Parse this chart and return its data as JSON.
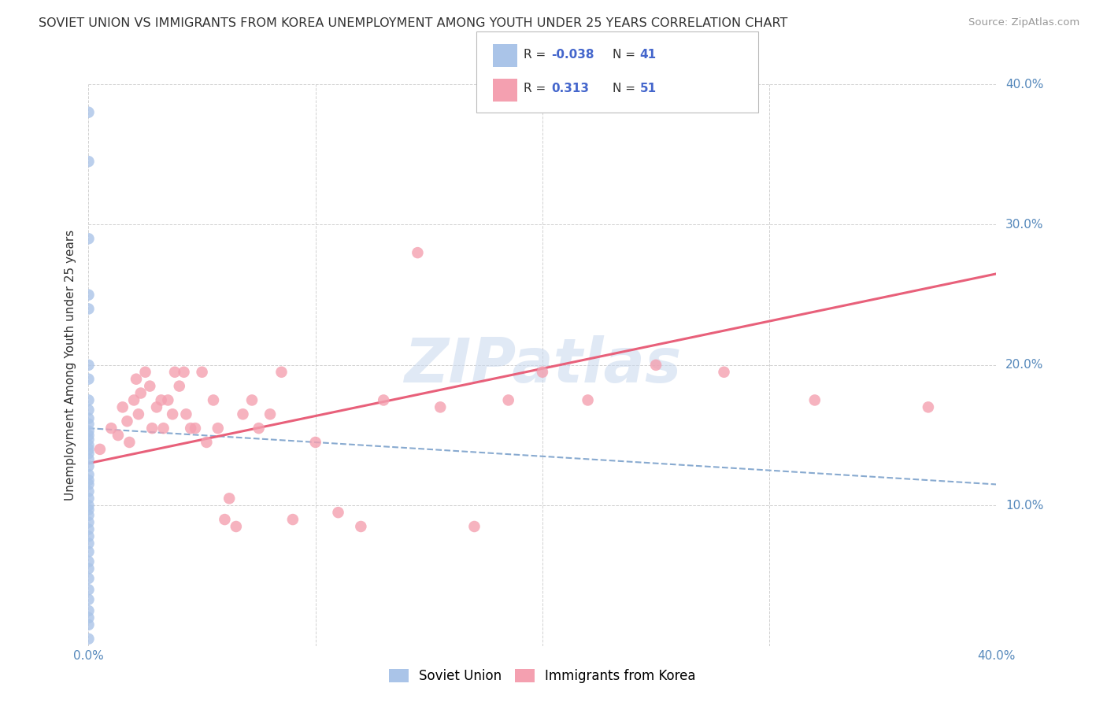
{
  "title": "SOVIET UNION VS IMMIGRANTS FROM KOREA UNEMPLOYMENT AMONG YOUTH UNDER 25 YEARS CORRELATION CHART",
  "source": "Source: ZipAtlas.com",
  "ylabel": "Unemployment Among Youth under 25 years",
  "xlim": [
    0.0,
    0.4
  ],
  "ylim": [
    0.0,
    0.4
  ],
  "background_color": "#ffffff",
  "grid_color": "#cccccc",
  "watermark_text": "ZIPatlas",
  "soviet_R": "-0.038",
  "soviet_N": "41",
  "korea_R": "0.313",
  "korea_N": "51",
  "soviet_color": "#aac4e8",
  "korea_color": "#f4a0b0",
  "soviet_line_color": "#88aad0",
  "korea_line_color": "#e8607a",
  "soviet_x": [
    0.0,
    0.0,
    0.0,
    0.0,
    0.0,
    0.0,
    0.0,
    0.0,
    0.0,
    0.0,
    0.0,
    0.0,
    0.0,
    0.0,
    0.0,
    0.0,
    0.0,
    0.0,
    0.0,
    0.0,
    0.0,
    0.0,
    0.0,
    0.0,
    0.0,
    0.0,
    0.0,
    0.0,
    0.0,
    0.0,
    0.0,
    0.0,
    0.0,
    0.0,
    0.0,
    0.0,
    0.0,
    0.0,
    0.0,
    0.0,
    0.0
  ],
  "soviet_y": [
    0.38,
    0.345,
    0.29,
    0.25,
    0.24,
    0.2,
    0.19,
    0.175,
    0.168,
    0.162,
    0.158,
    0.153,
    0.15,
    0.147,
    0.143,
    0.14,
    0.137,
    0.133,
    0.128,
    0.122,
    0.118,
    0.115,
    0.11,
    0.105,
    0.1,
    0.097,
    0.093,
    0.088,
    0.083,
    0.078,
    0.073,
    0.067,
    0.06,
    0.055,
    0.048,
    0.04,
    0.033,
    0.025,
    0.02,
    0.015,
    0.005
  ],
  "korea_x": [
    0.005,
    0.01,
    0.013,
    0.015,
    0.017,
    0.018,
    0.02,
    0.021,
    0.022,
    0.023,
    0.025,
    0.027,
    0.028,
    0.03,
    0.032,
    0.033,
    0.035,
    0.037,
    0.038,
    0.04,
    0.042,
    0.043,
    0.045,
    0.047,
    0.05,
    0.052,
    0.055,
    0.057,
    0.06,
    0.062,
    0.065,
    0.068,
    0.072,
    0.075,
    0.08,
    0.085,
    0.09,
    0.1,
    0.11,
    0.12,
    0.13,
    0.145,
    0.155,
    0.17,
    0.185,
    0.2,
    0.22,
    0.25,
    0.28,
    0.32,
    0.37
  ],
  "korea_y": [
    0.14,
    0.155,
    0.15,
    0.17,
    0.16,
    0.145,
    0.175,
    0.19,
    0.165,
    0.18,
    0.195,
    0.185,
    0.155,
    0.17,
    0.175,
    0.155,
    0.175,
    0.165,
    0.195,
    0.185,
    0.195,
    0.165,
    0.155,
    0.155,
    0.195,
    0.145,
    0.175,
    0.155,
    0.09,
    0.105,
    0.085,
    0.165,
    0.175,
    0.155,
    0.165,
    0.195,
    0.09,
    0.145,
    0.095,
    0.085,
    0.175,
    0.28,
    0.17,
    0.085,
    0.175,
    0.195,
    0.175,
    0.2,
    0.195,
    0.175,
    0.17
  ],
  "korea_line_start_y": 0.13,
  "korea_line_end_y": 0.265,
  "soviet_line_start_y": 0.155,
  "soviet_line_end_y": 0.115
}
